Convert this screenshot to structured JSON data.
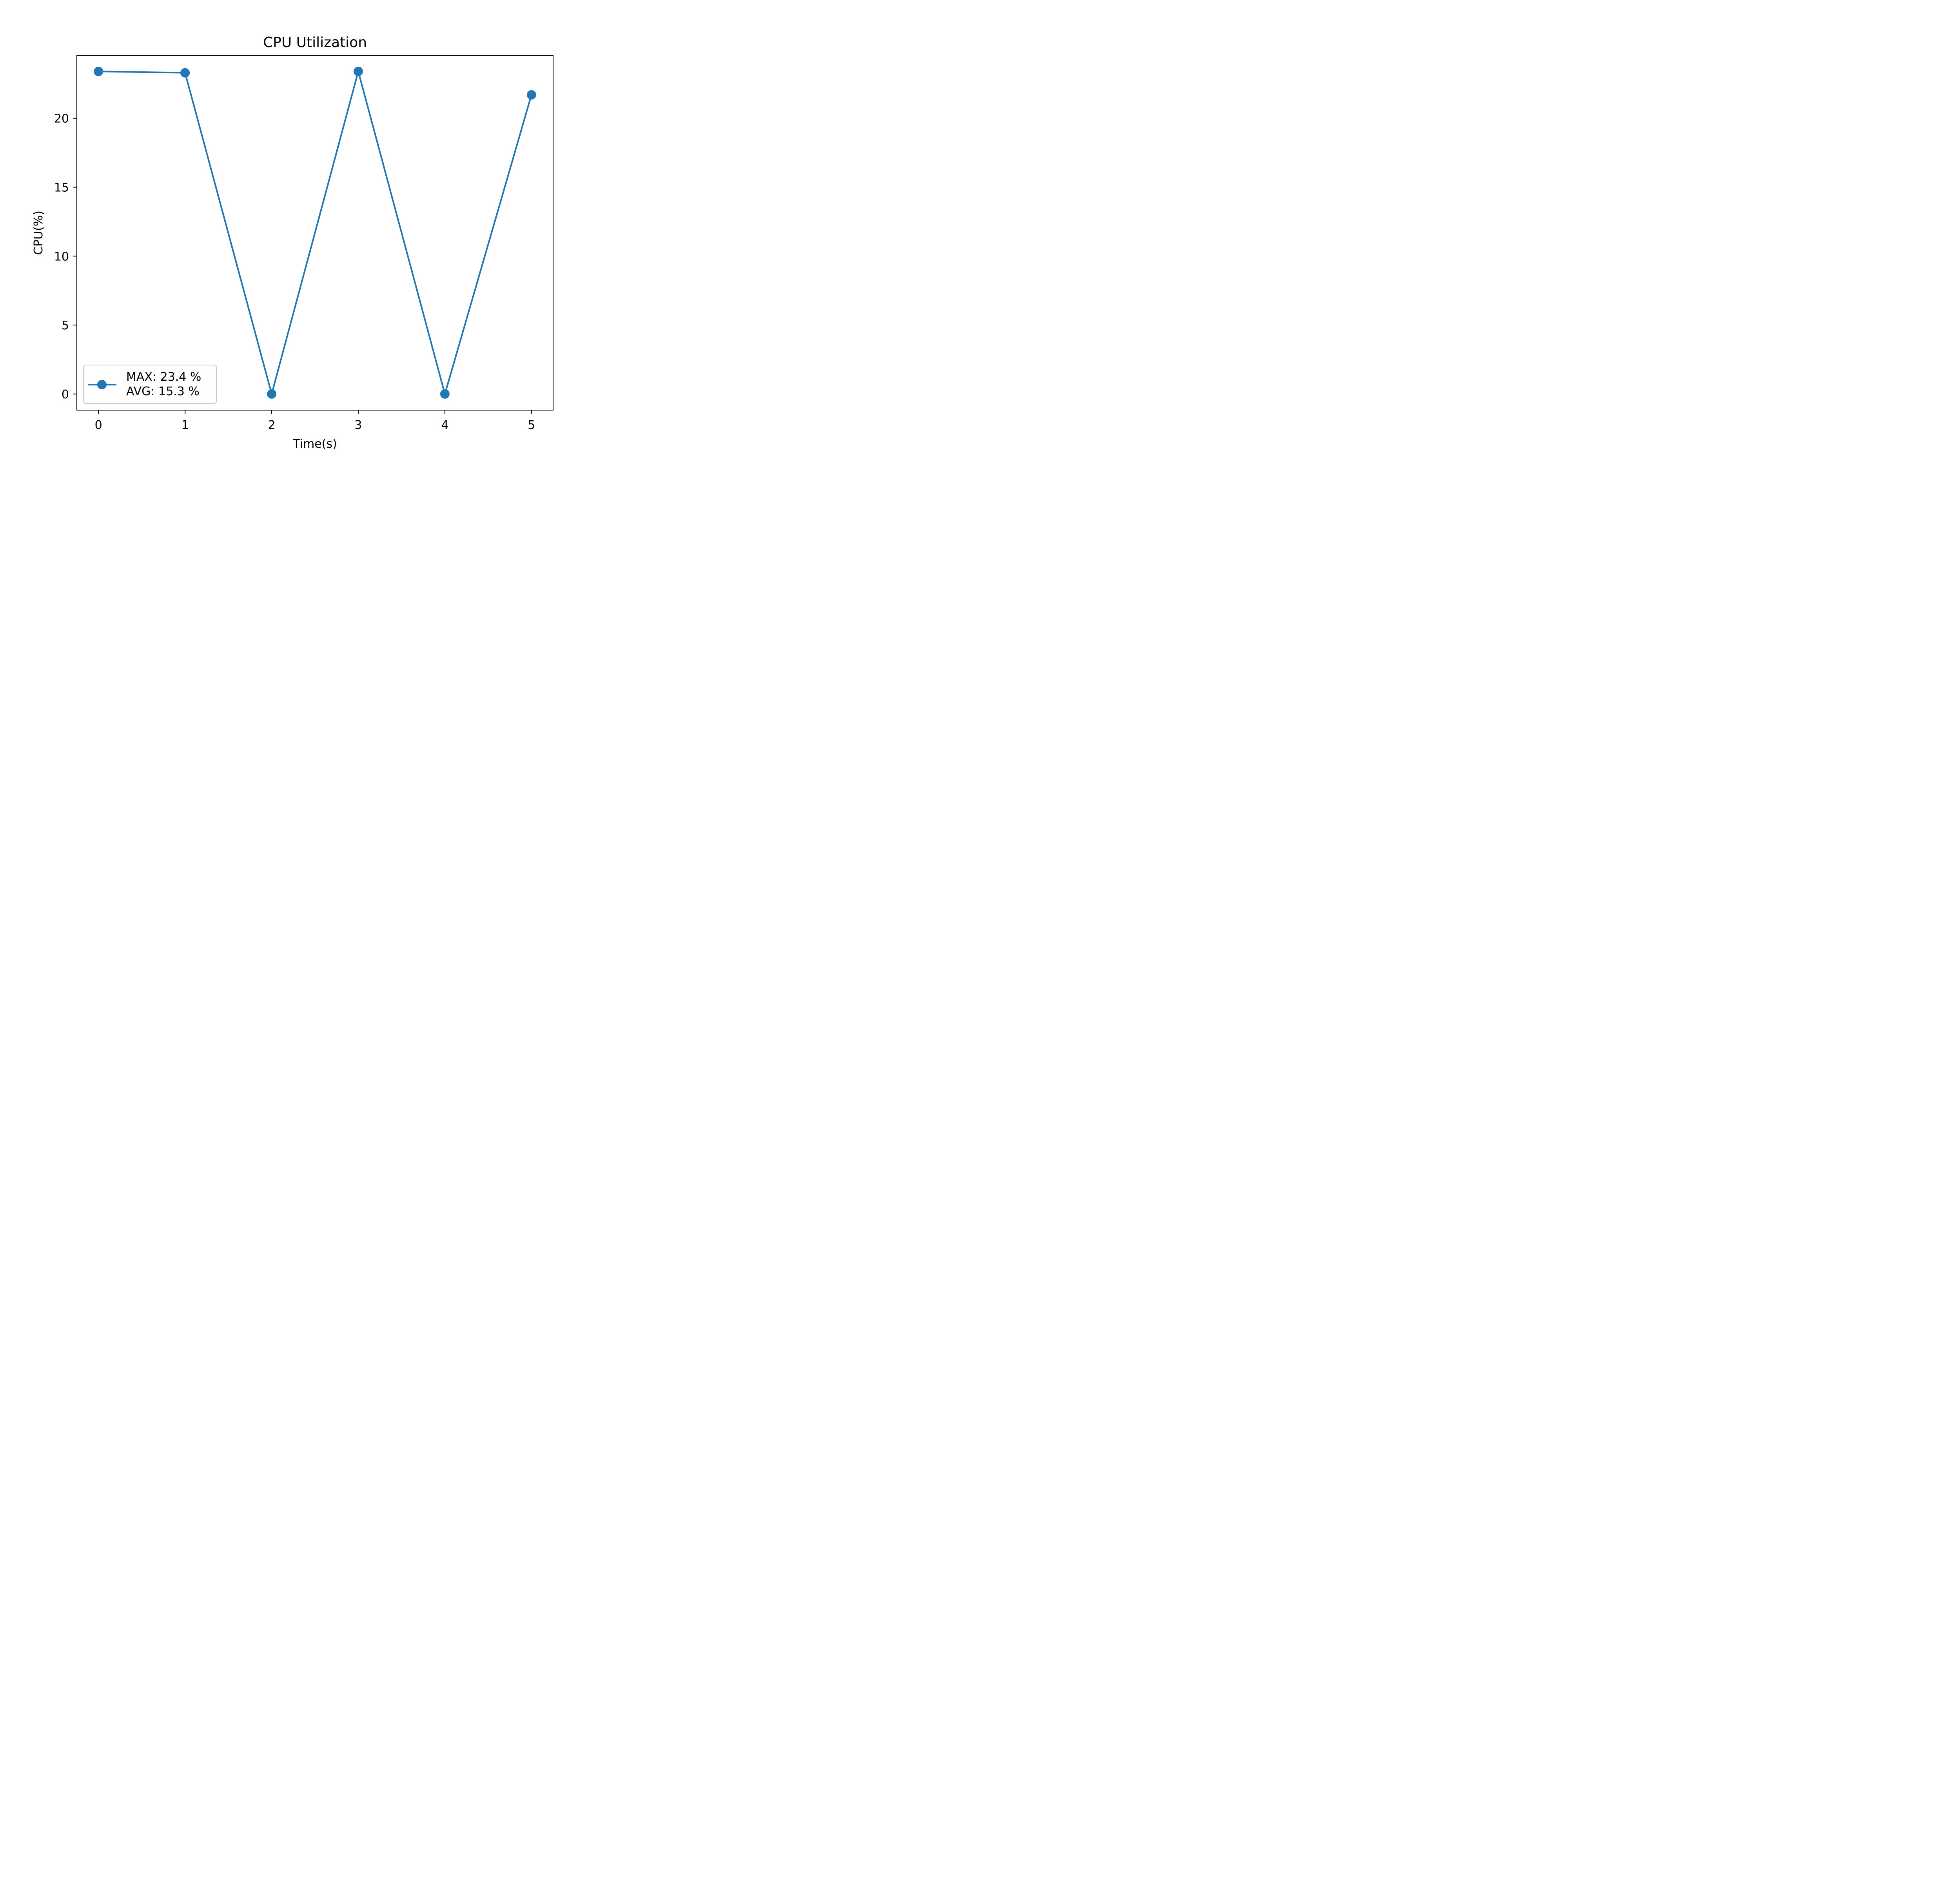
{
  "chart_data": {
    "type": "line",
    "title": "CPU Utilization",
    "xlabel": "Time(s)",
    "ylabel": "CPU(%)",
    "x": [
      0,
      1,
      2,
      3,
      4,
      5
    ],
    "series": [
      {
        "values": [
          23.4,
          23.3,
          0,
          23.4,
          0,
          21.7
        ],
        "color": "#1f77b4",
        "marker": "circle"
      }
    ],
    "xlim": [
      -0.25,
      5.25
    ],
    "ylim": [
      -1.17,
      24.57
    ],
    "xticks": [
      0,
      1,
      2,
      3,
      4,
      5
    ],
    "xtick_labels": [
      "0",
      "1",
      "2",
      "3",
      "4",
      "5"
    ],
    "yticks": [
      0,
      5,
      10,
      15,
      20
    ],
    "ytick_labels": [
      "0",
      "5",
      "10",
      "15",
      "20"
    ],
    "grid": false,
    "legend": {
      "placement": "lower-left",
      "lines": [
        "MAX: 23.4 %",
        "AVG: 15.3 %"
      ]
    }
  }
}
